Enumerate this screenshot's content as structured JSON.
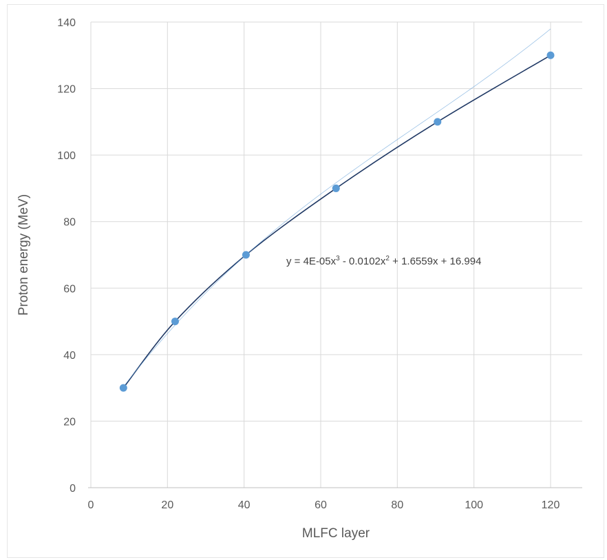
{
  "chart_data": {
    "type": "scatter",
    "xlabel": "MLFC layer",
    "ylabel": "Proton energy (MeV)",
    "xlim": [
      0,
      120
    ],
    "ylim": [
      0,
      140
    ],
    "x_ticks": [
      0,
      20,
      40,
      60,
      80,
      100,
      120
    ],
    "y_ticks": [
      0,
      20,
      40,
      60,
      80,
      100,
      120,
      140
    ],
    "grid": true,
    "series": [
      {
        "marker_color": "#5b9bd5",
        "line_color": "#1f3864",
        "points": [
          {
            "x": 8.5,
            "y": 30
          },
          {
            "x": 22,
            "y": 50
          },
          {
            "x": 40.5,
            "y": 70
          },
          {
            "x": 64,
            "y": 90
          },
          {
            "x": 90.5,
            "y": 110
          },
          {
            "x": 120,
            "y": 130
          }
        ]
      }
    ],
    "trendline": {
      "type": "polynomial",
      "coefficients": [
        4e-05,
        -0.0102,
        1.6559,
        16.994
      ],
      "equation_parts": [
        "y = 4E-05x",
        "3",
        " - 0.0102x",
        "2",
        " + 1.6559x  + 16.994"
      ]
    }
  }
}
